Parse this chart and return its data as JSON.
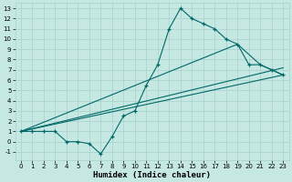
{
  "xlabel": "Humidex (Indice chaleur)",
  "bg_color": "#c6e8e2",
  "grid_color": "#a8d0cc",
  "line_color": "#006868",
  "xlim": [
    -0.5,
    23.5
  ],
  "ylim": [
    -1.8,
    13.5
  ],
  "xticks": [
    0,
    1,
    2,
    3,
    4,
    5,
    6,
    7,
    8,
    9,
    10,
    11,
    12,
    13,
    14,
    15,
    16,
    17,
    18,
    19,
    20,
    21,
    22,
    23
  ],
  "yticks": [
    -1,
    0,
    1,
    2,
    3,
    4,
    5,
    6,
    7,
    8,
    9,
    10,
    11,
    12,
    13
  ],
  "line1_x": [
    0,
    1,
    2,
    3,
    4,
    5,
    6,
    7,
    8,
    9,
    10,
    11,
    12,
    13,
    14,
    15,
    16,
    17,
    18,
    19,
    20,
    21,
    22,
    23
  ],
  "line1_y": [
    1,
    1,
    1,
    1,
    0,
    0,
    -0.2,
    -1.2,
    0.5,
    2.5,
    3,
    5.5,
    7.5,
    11,
    13,
    12,
    11.5,
    11,
    10,
    9.5,
    7.5,
    7.5,
    7,
    6.5
  ],
  "line2_x": [
    0,
    23
  ],
  "line2_y": [
    1,
    6.5
  ],
  "line3_x": [
    0,
    23
  ],
  "line3_y": [
    1,
    7.2
  ],
  "line4_x": [
    0,
    19,
    20,
    21,
    22,
    23
  ],
  "line4_y": [
    1,
    9.5,
    8.5,
    7.5,
    7.0,
    6.5
  ]
}
